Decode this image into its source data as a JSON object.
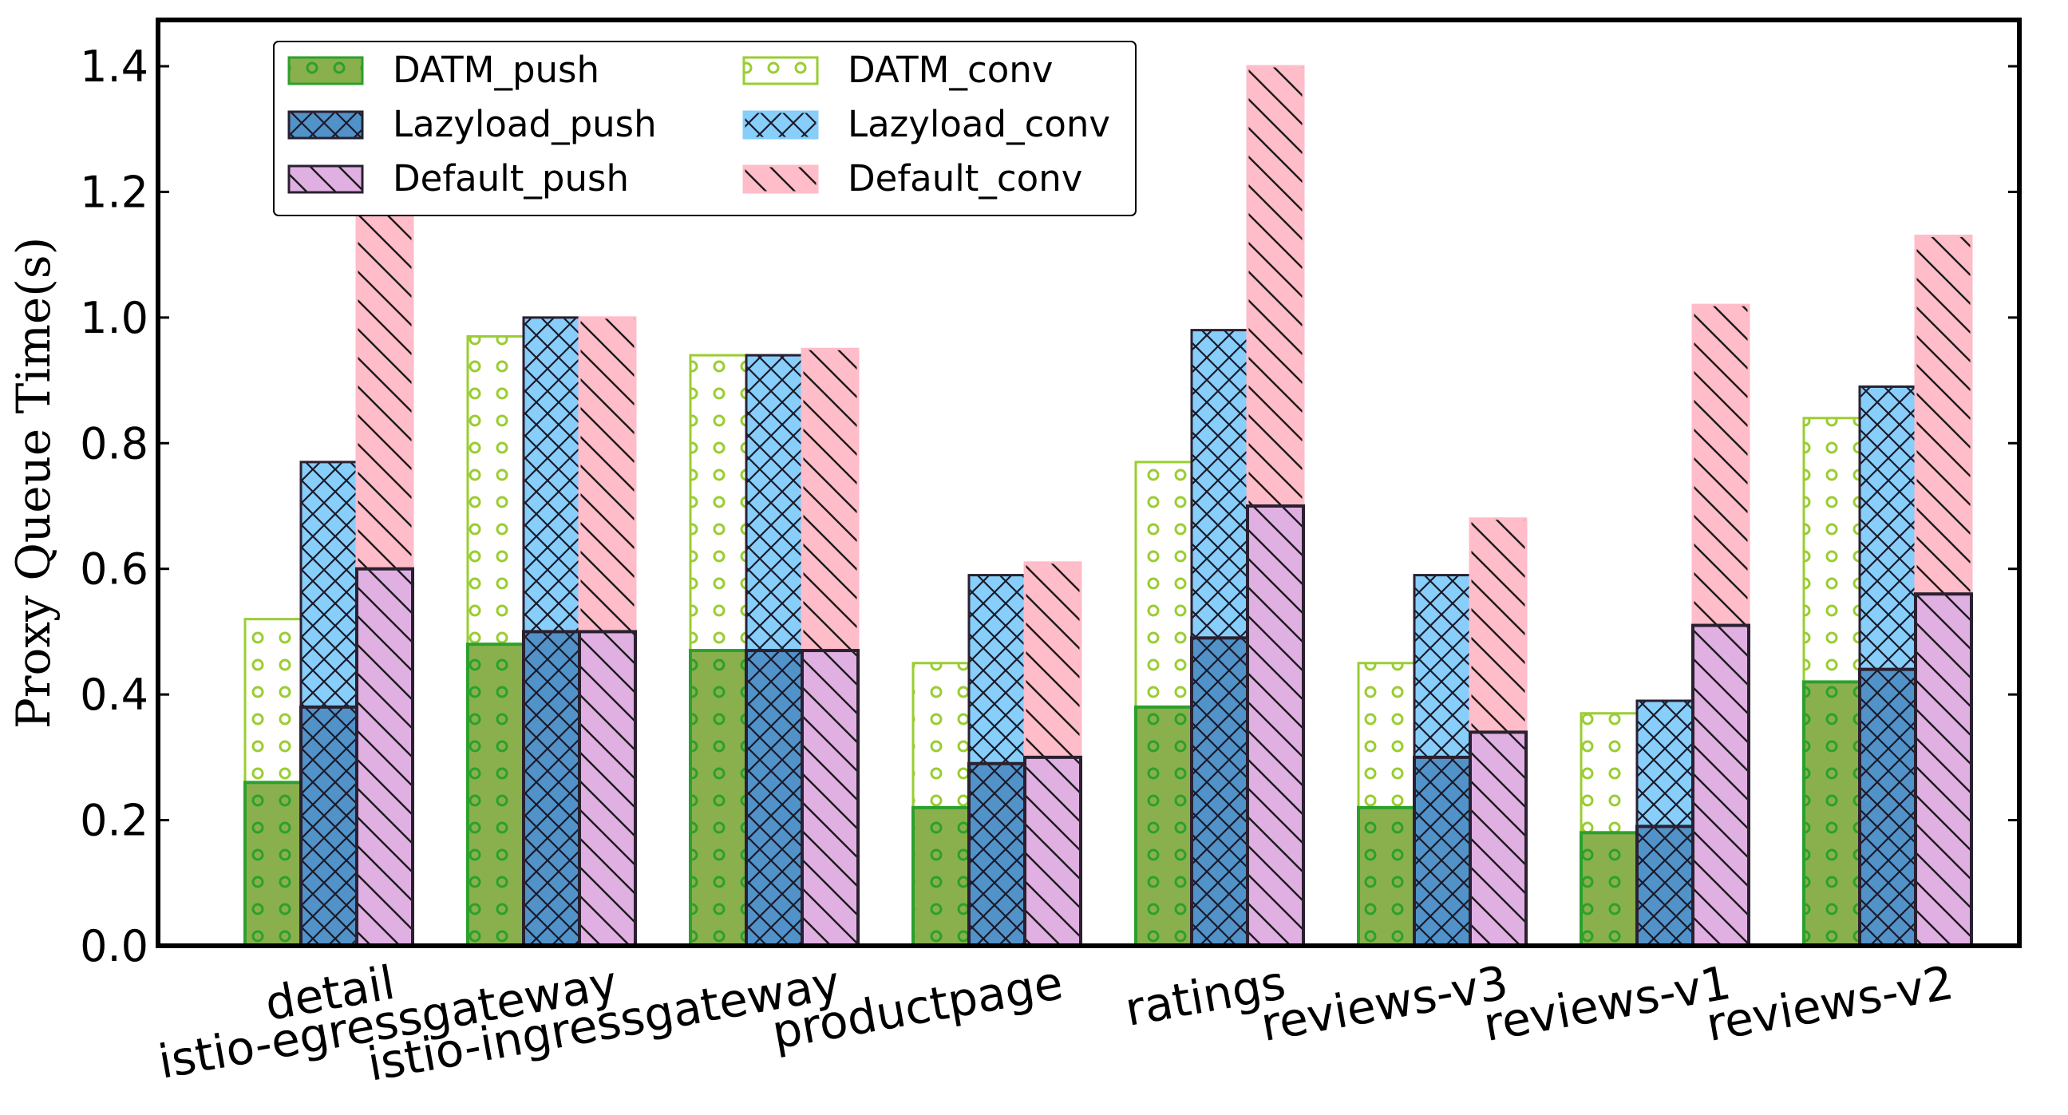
{
  "chart_data": {
    "type": "bar",
    "subtype": "overlaid-bars (push drawn in front of conv)",
    "title": "",
    "xlabel": "",
    "ylabel": "Proxy Queue Time(s)",
    "ylim": [
      0,
      1.4
    ],
    "yticks": [
      "0.0",
      "0.2",
      "0.4",
      "0.6",
      "0.8",
      "1.0",
      "1.2",
      "1.4"
    ],
    "grid": false,
    "legend_position": "top-left",
    "categories": [
      "detail",
      "istio-egressgateway",
      "istio-ingressgateway",
      "productpage",
      "ratings",
      "reviews-v3",
      "reviews-v1",
      "reviews-v2"
    ],
    "series": [
      {
        "name": "DATM_push",
        "values": [
          0.26,
          0.48,
          0.47,
          0.22,
          0.38,
          0.22,
          0.18,
          0.42
        ],
        "color": "#8ab04e",
        "edge": "#2ca02c",
        "hatch": "circles"
      },
      {
        "name": "DATM_conv",
        "values": [
          0.52,
          0.97,
          0.94,
          0.45,
          0.77,
          0.45,
          0.37,
          0.84
        ],
        "color": "#ffffff",
        "edge": "#9acd32",
        "hatch": "circles"
      },
      {
        "name": "Lazyload_push",
        "values": [
          0.38,
          0.5,
          0.47,
          0.29,
          0.49,
          0.3,
          0.19,
          0.44
        ],
        "color": "#5192c8",
        "edge": "#2a2030",
        "hatch": "cross"
      },
      {
        "name": "Lazyload_conv",
        "values": [
          0.77,
          1.0,
          0.94,
          0.59,
          0.98,
          0.59,
          0.39,
          0.89
        ],
        "color": "#87cefa",
        "edge": "#2a2030",
        "hatch": "cross"
      },
      {
        "name": "Default_push",
        "values": [
          0.6,
          0.5,
          0.47,
          0.3,
          0.7,
          0.34,
          0.51,
          0.56
        ],
        "color": "#e0b0e2",
        "edge": "#2a2030",
        "hatch": "backslash"
      },
      {
        "name": "Default_conv",
        "values": [
          1.2,
          1.0,
          0.95,
          0.61,
          1.4,
          0.68,
          1.02,
          1.13
        ],
        "color": "#ffbcc9",
        "edge": "#ffbcc9",
        "hatch": "backslash"
      }
    ],
    "legend": {
      "rows": [
        [
          "DATM_push",
          "DATM_conv"
        ],
        [
          "Lazyload_push",
          "Lazyload_conv"
        ],
        [
          "Default_push",
          "Default_conv"
        ]
      ]
    }
  }
}
